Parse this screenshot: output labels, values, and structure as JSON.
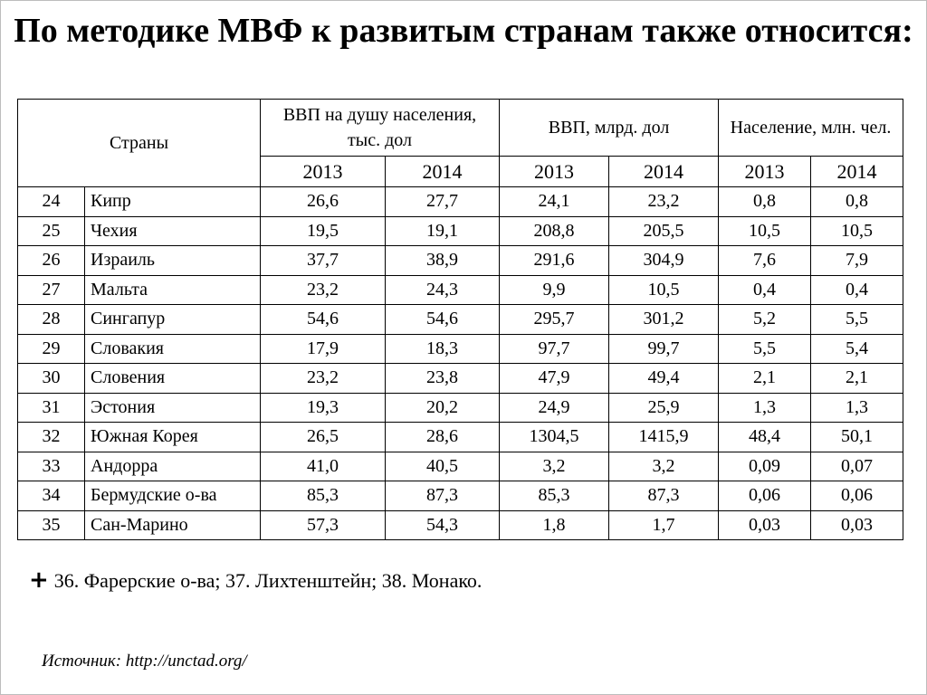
{
  "title": "По методике МВФ к развитым странам также относится:",
  "table": {
    "header": {
      "countries": "Страны",
      "gdp_per_capita": "ВВП на душу населения, тыс. дол",
      "gdp": "ВВП, млрд. дол",
      "population": "Население, млн. чел.",
      "years": [
        "2013",
        "2014",
        "2013",
        "2014",
        "2013",
        "2014"
      ]
    },
    "rows": [
      {
        "n": "24",
        "country": "Кипр",
        "vals": [
          "26,6",
          "27,7",
          "24,1",
          "23,2",
          "0,8",
          "0,8"
        ]
      },
      {
        "n": "25",
        "country": "Чехия",
        "vals": [
          "19,5",
          "19,1",
          "208,8",
          "205,5",
          "10,5",
          "10,5"
        ]
      },
      {
        "n": "26",
        "country": "Израиль",
        "vals": [
          "37,7",
          "38,9",
          "291,6",
          "304,9",
          "7,6",
          "7,9"
        ]
      },
      {
        "n": "27",
        "country": "Мальта",
        "vals": [
          "23,2",
          "24,3",
          "9,9",
          "10,5",
          "0,4",
          "0,4"
        ]
      },
      {
        "n": "28",
        "country": "Сингапур",
        "vals": [
          "54,6",
          "54,6",
          "295,7",
          "301,2",
          "5,2",
          "5,5"
        ]
      },
      {
        "n": "29",
        "country": "Словакия",
        "vals": [
          "17,9",
          "18,3",
          "97,7",
          "99,7",
          "5,5",
          "5,4"
        ]
      },
      {
        "n": "30",
        "country": "Словения",
        "vals": [
          "23,2",
          "23,8",
          "47,9",
          "49,4",
          "2,1",
          "2,1"
        ]
      },
      {
        "n": "31",
        "country": "Эстония",
        "vals": [
          "19,3",
          "20,2",
          "24,9",
          "25,9",
          "1,3",
          "1,3"
        ]
      },
      {
        "n": "32",
        "country": "Южная Корея",
        "vals": [
          "26,5",
          "28,6",
          "1304,5",
          "1415,9",
          "48,4",
          "50,1"
        ]
      },
      {
        "n": "33",
        "country": "Андорра",
        "vals": [
          "41,0",
          "40,5",
          "3,2",
          "3,2",
          "0,09",
          "0,07"
        ]
      },
      {
        "n": "34",
        "country": "Бермудские о-ва",
        "vals": [
          "85,3",
          "87,3",
          "85,3",
          "87,3",
          "0,06",
          "0,06"
        ]
      },
      {
        "n": "35",
        "country": "Сан-Марино",
        "vals": [
          "57,3",
          "54,3",
          "1,8",
          "1,7",
          "0,03",
          "0,03"
        ]
      }
    ]
  },
  "footnote": {
    "symbol": "+",
    "text": "36. Фарерские о-ва;  37. Лихтенштейн;  38. Монако."
  },
  "source": "Источник: http://unctad.org/"
}
